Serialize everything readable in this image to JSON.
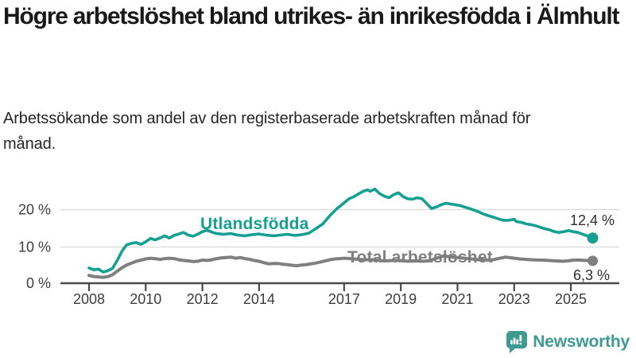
{
  "chart_data": {
    "type": "line",
    "title": "Högre arbetslöshet bland utrikes- än inrikesfödda i Älmhult",
    "subtitle": "Arbetssökande som andel av den registerbaserade arbetskraften månad för månad.",
    "unit": "%",
    "grid": "horizontal-only",
    "legend": "inline-labels-on-lines",
    "x_range": [
      2008,
      2025.85
    ],
    "y_range": [
      0,
      27
    ],
    "x_ticks": [
      2008,
      2010,
      2012,
      2014,
      2017,
      2019,
      2021,
      2023,
      2025
    ],
    "y_ticks": [
      {
        "value": 0,
        "label": "0 %"
      },
      {
        "value": 10,
        "label": "10 %"
      },
      {
        "value": 20,
        "label": "20 %"
      }
    ],
    "series": [
      {
        "name": "Utlandsfödda",
        "color": "#16a091",
        "end_value": 12.4,
        "end_label": "12,4 %",
        "points": [
          [
            2008.0,
            4.4
          ],
          [
            2008.17,
            3.9
          ],
          [
            2008.33,
            4.1
          ],
          [
            2008.5,
            3.3
          ],
          [
            2008.67,
            3.7
          ],
          [
            2008.83,
            4.3
          ],
          [
            2009.0,
            6.5
          ],
          [
            2009.17,
            9.0
          ],
          [
            2009.33,
            10.6
          ],
          [
            2009.5,
            11.0
          ],
          [
            2009.67,
            11.2
          ],
          [
            2009.83,
            10.7
          ],
          [
            2010.0,
            11.4
          ],
          [
            2010.17,
            12.3
          ],
          [
            2010.33,
            11.9
          ],
          [
            2010.5,
            12.4
          ],
          [
            2010.67,
            13.0
          ],
          [
            2010.83,
            12.4
          ],
          [
            2011.0,
            13.1
          ],
          [
            2011.17,
            13.5
          ],
          [
            2011.33,
            13.9
          ],
          [
            2011.5,
            13.2
          ],
          [
            2011.67,
            12.9
          ],
          [
            2011.83,
            13.4
          ],
          [
            2012.0,
            14.1
          ],
          [
            2012.17,
            14.5
          ],
          [
            2012.33,
            14.0
          ],
          [
            2012.5,
            13.6
          ],
          [
            2012.75,
            13.4
          ],
          [
            2013.0,
            13.6
          ],
          [
            2013.25,
            13.2
          ],
          [
            2013.5,
            13.0
          ],
          [
            2013.75,
            13.3
          ],
          [
            2014.0,
            13.5
          ],
          [
            2014.25,
            13.2
          ],
          [
            2014.5,
            13.0
          ],
          [
            2014.75,
            13.2
          ],
          [
            2015.0,
            13.4
          ],
          [
            2015.25,
            13.1
          ],
          [
            2015.5,
            13.3
          ],
          [
            2015.75,
            13.7
          ],
          [
            2016.0,
            14.9
          ],
          [
            2016.25,
            16.2
          ],
          [
            2016.5,
            18.4
          ],
          [
            2016.75,
            20.3
          ],
          [
            2016.92,
            21.3
          ],
          [
            2017.0,
            21.8
          ],
          [
            2017.17,
            22.9
          ],
          [
            2017.33,
            23.4
          ],
          [
            2017.5,
            24.2
          ],
          [
            2017.67,
            24.9
          ],
          [
            2017.83,
            25.3
          ],
          [
            2017.92,
            24.9
          ],
          [
            2018.0,
            25.2
          ],
          [
            2018.08,
            25.5
          ],
          [
            2018.25,
            24.3
          ],
          [
            2018.42,
            23.6
          ],
          [
            2018.58,
            23.2
          ],
          [
            2018.75,
            24.0
          ],
          [
            2018.92,
            24.5
          ],
          [
            2019.08,
            23.5
          ],
          [
            2019.25,
            22.9
          ],
          [
            2019.42,
            22.8
          ],
          [
            2019.58,
            23.2
          ],
          [
            2019.75,
            22.9
          ],
          [
            2019.92,
            21.6
          ],
          [
            2020.08,
            20.3
          ],
          [
            2020.25,
            20.7
          ],
          [
            2020.42,
            21.3
          ],
          [
            2020.58,
            21.7
          ],
          [
            2020.75,
            21.5
          ],
          [
            2020.92,
            21.3
          ],
          [
            2021.08,
            21.1
          ],
          [
            2021.25,
            20.7
          ],
          [
            2021.42,
            20.3
          ],
          [
            2021.58,
            19.9
          ],
          [
            2021.75,
            19.4
          ],
          [
            2021.92,
            18.8
          ],
          [
            2022.08,
            18.4
          ],
          [
            2022.25,
            18.0
          ],
          [
            2022.42,
            17.6
          ],
          [
            2022.58,
            17.2
          ],
          [
            2022.75,
            17.1
          ],
          [
            2022.92,
            17.3
          ],
          [
            2023.0,
            17.4
          ],
          [
            2023.08,
            16.8
          ],
          [
            2023.25,
            16.6
          ],
          [
            2023.42,
            16.2
          ],
          [
            2023.58,
            16.0
          ],
          [
            2023.75,
            15.7
          ],
          [
            2023.92,
            15.3
          ],
          [
            2024.08,
            14.9
          ],
          [
            2024.25,
            14.6
          ],
          [
            2024.42,
            14.1
          ],
          [
            2024.58,
            13.9
          ],
          [
            2024.75,
            14.1
          ],
          [
            2024.92,
            14.4
          ],
          [
            2025.08,
            14.1
          ],
          [
            2025.25,
            13.9
          ],
          [
            2025.42,
            13.4
          ],
          [
            2025.58,
            13.0
          ],
          [
            2025.77,
            12.4
          ]
        ]
      },
      {
        "name": "Total arbetslöshet",
        "color": "#7f7f7f",
        "end_value": 6.3,
        "end_label": "6,3 %",
        "points": [
          [
            2008.0,
            2.4
          ],
          [
            2008.17,
            2.1
          ],
          [
            2008.33,
            2.0
          ],
          [
            2008.5,
            1.9
          ],
          [
            2008.67,
            2.1
          ],
          [
            2008.83,
            2.6
          ],
          [
            2009.0,
            3.6
          ],
          [
            2009.17,
            4.5
          ],
          [
            2009.33,
            5.2
          ],
          [
            2009.5,
            5.7
          ],
          [
            2009.67,
            6.2
          ],
          [
            2009.83,
            6.5
          ],
          [
            2010.0,
            6.8
          ],
          [
            2010.17,
            7.0
          ],
          [
            2010.33,
            6.9
          ],
          [
            2010.5,
            6.7
          ],
          [
            2010.67,
            6.9
          ],
          [
            2010.83,
            7.0
          ],
          [
            2011.0,
            6.9
          ],
          [
            2011.17,
            6.6
          ],
          [
            2011.33,
            6.4
          ],
          [
            2011.5,
            6.3
          ],
          [
            2011.67,
            6.1
          ],
          [
            2011.83,
            6.2
          ],
          [
            2012.0,
            6.5
          ],
          [
            2012.17,
            6.4
          ],
          [
            2012.33,
            6.6
          ],
          [
            2012.5,
            6.9
          ],
          [
            2012.67,
            7.1
          ],
          [
            2012.83,
            7.2
          ],
          [
            2013.0,
            7.3
          ],
          [
            2013.17,
            7.0
          ],
          [
            2013.33,
            7.2
          ],
          [
            2013.5,
            6.9
          ],
          [
            2013.67,
            6.7
          ],
          [
            2013.83,
            6.4
          ],
          [
            2014.0,
            6.2
          ],
          [
            2014.17,
            5.8
          ],
          [
            2014.33,
            5.5
          ],
          [
            2014.5,
            5.6
          ],
          [
            2014.67,
            5.6
          ],
          [
            2014.83,
            5.4
          ],
          [
            2015.0,
            5.3
          ],
          [
            2015.17,
            5.1
          ],
          [
            2015.33,
            5.0
          ],
          [
            2015.5,
            5.2
          ],
          [
            2015.67,
            5.3
          ],
          [
            2015.83,
            5.5
          ],
          [
            2016.0,
            5.7
          ],
          [
            2016.17,
            6.0
          ],
          [
            2016.33,
            6.3
          ],
          [
            2016.5,
            6.6
          ],
          [
            2016.67,
            6.8
          ],
          [
            2016.83,
            6.9
          ],
          [
            2017.0,
            7.0
          ],
          [
            2017.25,
            6.9
          ],
          [
            2017.5,
            6.7
          ],
          [
            2017.75,
            6.6
          ],
          [
            2018.0,
            6.6
          ],
          [
            2018.25,
            6.4
          ],
          [
            2018.5,
            6.3
          ],
          [
            2018.75,
            6.4
          ],
          [
            2019.0,
            6.4
          ],
          [
            2019.25,
            6.2
          ],
          [
            2019.5,
            6.3
          ],
          [
            2019.75,
            6.2
          ],
          [
            2020.0,
            6.3
          ],
          [
            2020.25,
            7.0
          ],
          [
            2020.5,
            7.6
          ],
          [
            2020.75,
            7.4
          ],
          [
            2021.0,
            7.2
          ],
          [
            2021.25,
            7.0
          ],
          [
            2021.5,
            6.8
          ],
          [
            2021.75,
            6.6
          ],
          [
            2022.0,
            6.5
          ],
          [
            2022.25,
            6.6
          ],
          [
            2022.5,
            7.0
          ],
          [
            2022.7,
            7.3
          ],
          [
            2022.9,
            7.1
          ],
          [
            2023.0,
            7.0
          ],
          [
            2023.2,
            6.8
          ],
          [
            2023.4,
            6.7
          ],
          [
            2023.6,
            6.6
          ],
          [
            2023.85,
            6.5
          ],
          [
            2024.0,
            6.5
          ],
          [
            2024.2,
            6.4
          ],
          [
            2024.45,
            6.3
          ],
          [
            2024.7,
            6.2
          ],
          [
            2024.9,
            6.3
          ],
          [
            2025.1,
            6.5
          ],
          [
            2025.3,
            6.5
          ],
          [
            2025.5,
            6.4
          ],
          [
            2025.65,
            6.4
          ],
          [
            2025.77,
            6.3
          ]
        ]
      }
    ]
  },
  "footer": {
    "brand": "Newsworthy",
    "logo_icon": "bar-chart-exclamation-speech-bubble-icon",
    "brand_color": "#3e9a93"
  },
  "palette": {
    "foreign_born_line": "#16a091",
    "total_line": "#7f7f7f",
    "gridline": "#d9d9d9",
    "axis": "#4a4a4a",
    "axis_text": "#3d3d3d",
    "value_label_text": "#2e2e2e",
    "title_text": "#191919"
  }
}
